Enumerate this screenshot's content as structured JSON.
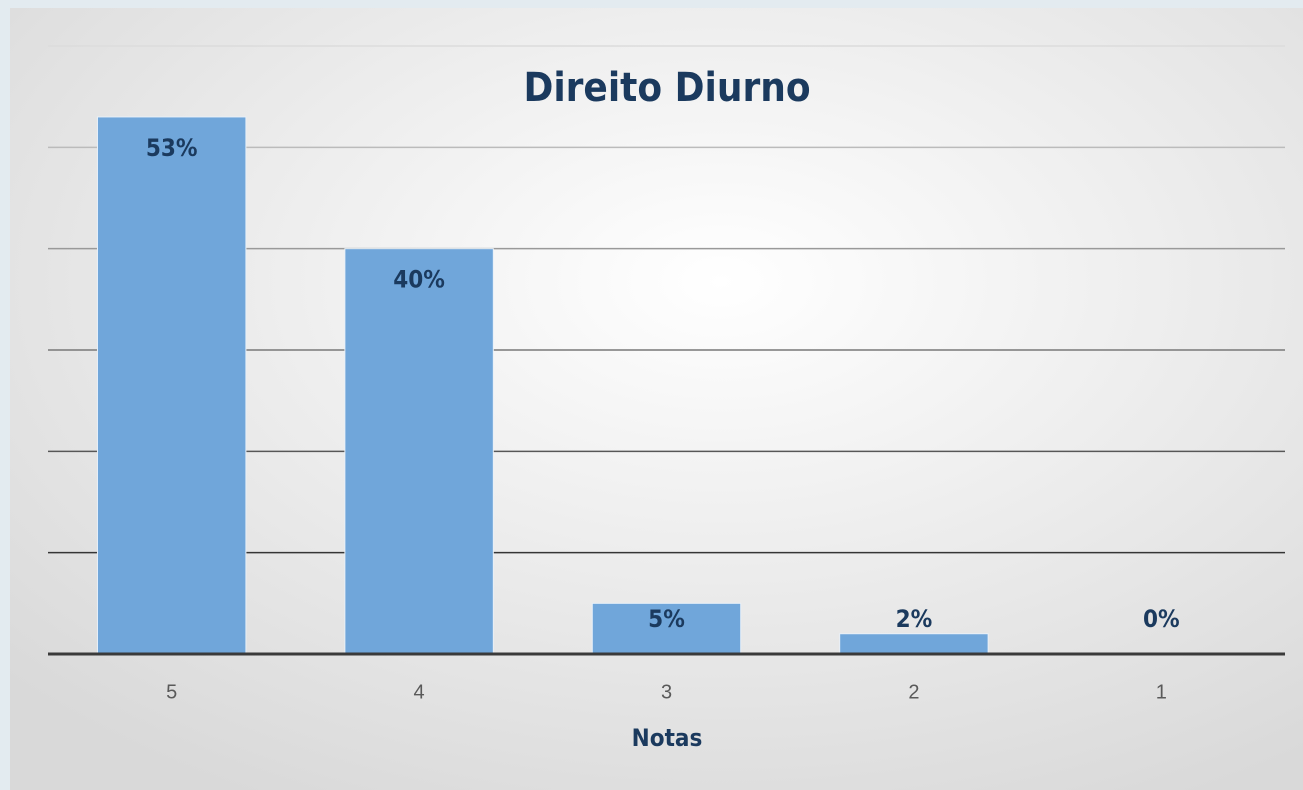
{
  "chart_data": {
    "type": "bar",
    "title": "Direito Diurno",
    "x_label": "Notas",
    "categories": [
      "5",
      "4",
      "3",
      "2",
      "1"
    ],
    "values": [
      53,
      40,
      5,
      2,
      0
    ],
    "value_labels": [
      "53%",
      "40%",
      "5%",
      "2%",
      "0%"
    ],
    "color": "#70a6da",
    "ylim": [
      0,
      60
    ],
    "yticks": [
      0,
      10,
      20,
      30,
      40,
      50,
      60
    ],
    "grid": true
  }
}
